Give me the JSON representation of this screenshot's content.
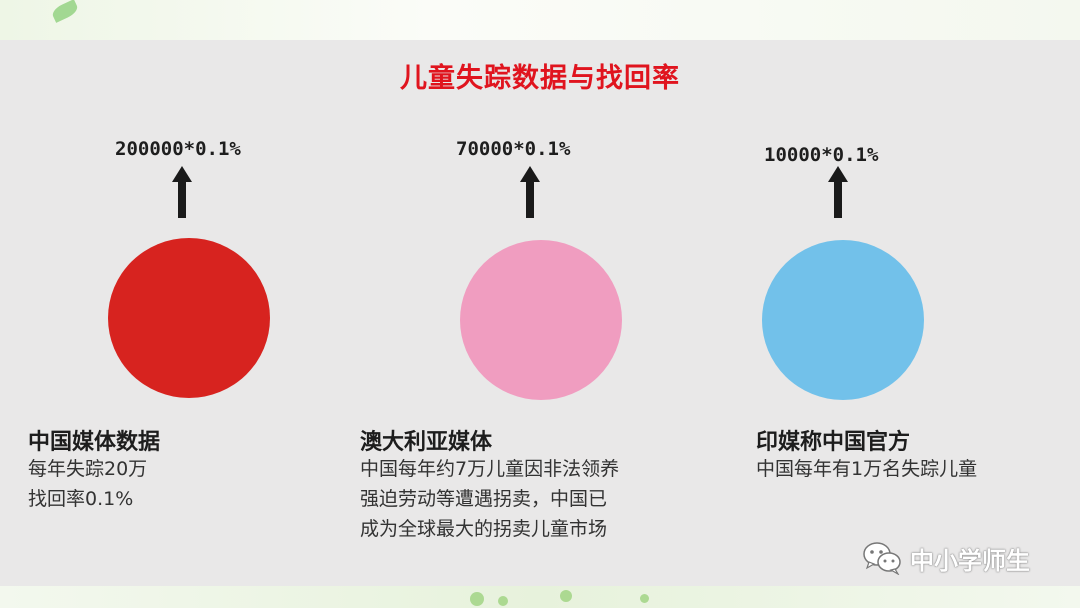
{
  "slide": {
    "title": "儿童失踪数据与找回率",
    "items": [
      {
        "formula": "200000*0.1%",
        "circle_color": "#d7231f",
        "heading": "中国媒体数据",
        "body": "每年失踪20万\n找回率0.1%"
      },
      {
        "formula": "70000*0.1%",
        "circle_color": "#f09dc0",
        "heading": "澳大利亚媒体",
        "body": "中国每年约7万儿童因非法领养\n强迫劳动等遭遇拐卖，中国已\n成为全球最大的拐卖儿童市场"
      },
      {
        "formula": "10000*0.1%",
        "circle_color": "#72c1ea",
        "heading": "印媒称中国官方",
        "body": "中国每年有1万名失踪儿童"
      }
    ]
  },
  "watermark": {
    "icon": "wechat-icon",
    "text": "中小学师生"
  }
}
